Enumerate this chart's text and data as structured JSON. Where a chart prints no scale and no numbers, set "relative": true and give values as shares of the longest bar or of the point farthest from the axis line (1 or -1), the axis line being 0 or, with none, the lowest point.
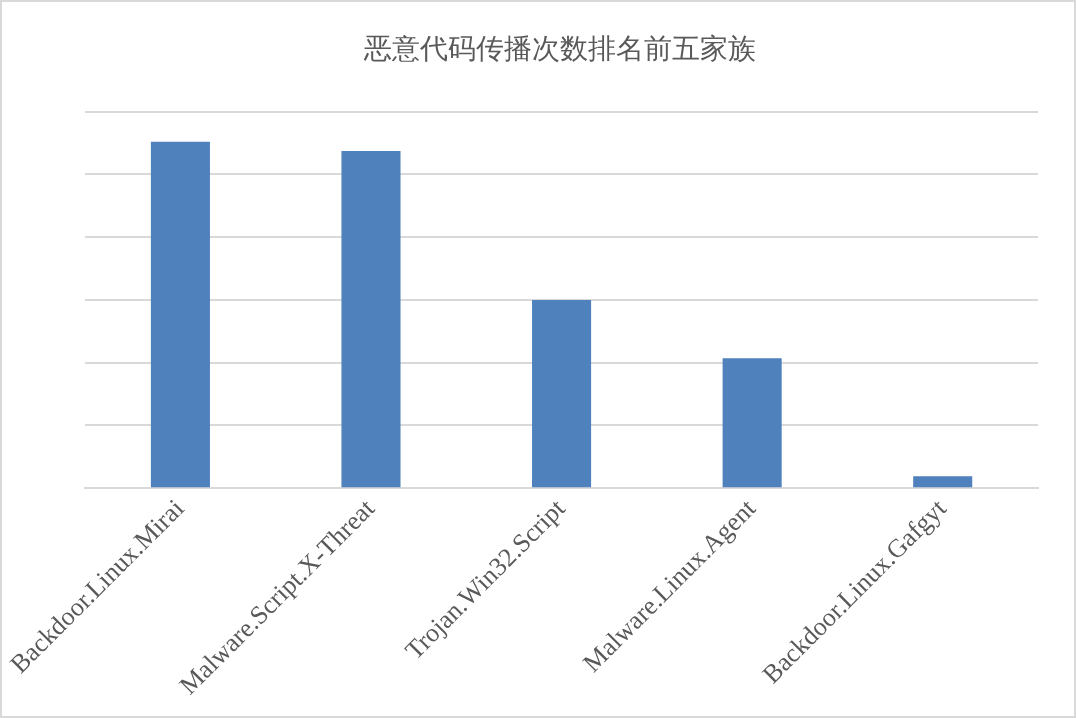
{
  "chart_data": {
    "type": "bar",
    "title": "恶意代码传播次数排名前五家族",
    "categories": [
      "Backdoor.Linux.Mirai",
      "Malware.Script.X-Threat",
      "Trojan.Win32.Script",
      "Malware.Linux.Agent",
      "Backdoor.Linux.Gafgyt"
    ],
    "values": [
      1,
      0.973,
      0.543,
      0.375,
      0.034
    ],
    "color": "#4f81bd",
    "relative": true,
    "grid": "y"
  }
}
